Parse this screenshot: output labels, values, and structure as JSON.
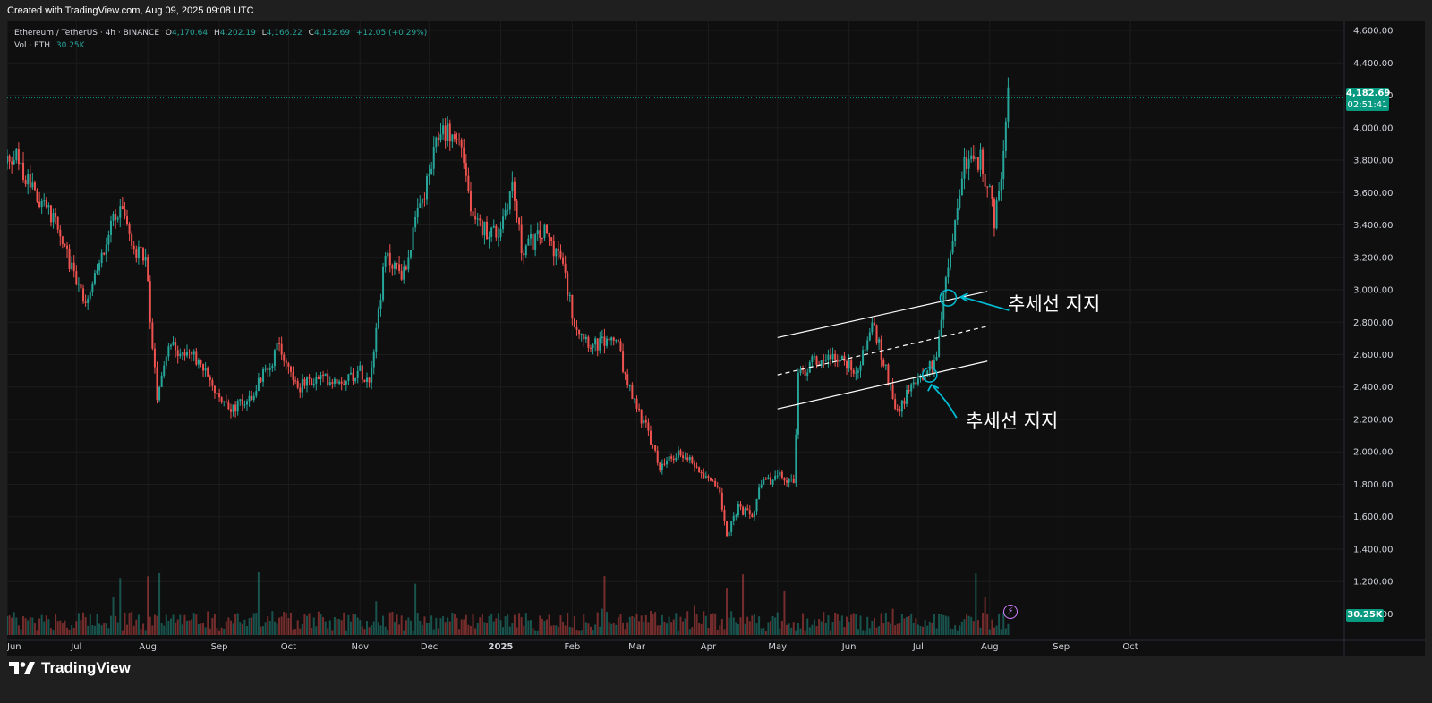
{
  "header": {
    "created_text": "Created with TradingView.com, Aug 09, 2025 09:08 UTC"
  },
  "legend": {
    "symbol": "Ethereum / TetherUS · 4h · BINANCE",
    "o_label": "O",
    "o_value": "4,170.64",
    "h_label": "H",
    "h_value": "4,202.19",
    "l_label": "L",
    "l_value": "4,166.22",
    "c_label": "C",
    "c_value": "4,182.69",
    "change": "+12.05 (+0.29%)",
    "vol_label": "Vol · ETH",
    "vol_value": "30.25K"
  },
  "badges": {
    "last_price": "4,182.69",
    "countdown": "02:51:41",
    "volume": "30.25K"
  },
  "annotations": {
    "upper_support": "추세선 지지",
    "lower_support": "추세선 지지"
  },
  "footer": {
    "brand": "TradingView"
  },
  "colors": {
    "up": "#26a69a",
    "down": "#ef5350",
    "accent": "#00bcd4",
    "badge": "#089981"
  },
  "chart_data": {
    "type": "candlestick",
    "title": "",
    "interval": "4h",
    "y_axis": {
      "position": "right",
      "ticks": [
        "4,600.00",
        "4,400.00",
        "4,200.00",
        "4,000.00",
        "3,800.00",
        "3,600.00",
        "3,400.00",
        "3,200.00",
        "3,000.00",
        "2,800.00",
        "2,600.00",
        "2,400.00",
        "2,200.00",
        "2,000.00",
        "1,800.00",
        "1,600.00",
        "1,400.00",
        "1,200.00",
        "1,000.00"
      ],
      "range": [
        870,
        4650
      ]
    },
    "x_axis": {
      "ticks": [
        "Jun",
        "Jul",
        "Aug",
        "Sep",
        "Oct",
        "Nov",
        "Dec",
        "2025",
        "Feb",
        "Mar",
        "Apr",
        "May",
        "Jun",
        "Jul",
        "Aug",
        "Sep",
        "Oct"
      ]
    },
    "grid": true,
    "last_price": 4182.69,
    "price_path": [
      [
        "2024-06-01",
        3780
      ],
      [
        "2024-06-05",
        3820
      ],
      [
        "2024-06-10",
        3650
      ],
      [
        "2024-06-17",
        3500
      ],
      [
        "2024-06-24",
        3370
      ],
      [
        "2024-06-28",
        3150
      ],
      [
        "2024-07-05",
        2890
      ],
      [
        "2024-07-10",
        3100
      ],
      [
        "2024-07-15",
        3380
      ],
      [
        "2024-07-20",
        3500
      ],
      [
        "2024-07-25",
        3250
      ],
      [
        "2024-07-31",
        3200
      ],
      [
        "2024-08-05",
        2300
      ],
      [
        "2024-08-10",
        2650
      ],
      [
        "2024-08-20",
        2600
      ],
      [
        "2024-08-27",
        2450
      ],
      [
        "2024-09-06",
        2250
      ],
      [
        "2024-09-15",
        2350
      ],
      [
        "2024-09-27",
        2650
      ],
      [
        "2024-10-05",
        2400
      ],
      [
        "2024-10-14",
        2450
      ],
      [
        "2024-10-25",
        2450
      ],
      [
        "2024-11-01",
        2500
      ],
      [
        "2024-11-05",
        2450
      ],
      [
        "2024-11-12",
        3200
      ],
      [
        "2024-11-20",
        3100
      ],
      [
        "2024-11-25",
        3400
      ],
      [
        "2024-12-01",
        3700
      ],
      [
        "2024-12-06",
        4000
      ],
      [
        "2024-12-15",
        3900
      ],
      [
        "2024-12-20",
        3400
      ],
      [
        "2024-12-31",
        3350
      ],
      [
        "2025-01-06",
        3650
      ],
      [
        "2025-01-10",
        3250
      ],
      [
        "2025-01-20",
        3350
      ],
      [
        "2025-01-27",
        3200
      ],
      [
        "2025-02-02",
        2800
      ],
      [
        "2025-02-10",
        2650
      ],
      [
        "2025-02-20",
        2700
      ],
      [
        "2025-02-25",
        2400
      ],
      [
        "2025-03-05",
        2150
      ],
      [
        "2025-03-11",
        1900
      ],
      [
        "2025-03-20",
        2000
      ],
      [
        "2025-03-28",
        1900
      ],
      [
        "2025-04-05",
        1800
      ],
      [
        "2025-04-09",
        1500
      ],
      [
        "2025-04-14",
        1650
      ],
      [
        "2025-04-20",
        1600
      ],
      [
        "2025-04-24",
        1800
      ],
      [
        "2025-05-01",
        1850
      ],
      [
        "2025-05-08",
        1820
      ],
      [
        "2025-05-10",
        2450
      ],
      [
        "2025-05-15",
        2550
      ],
      [
        "2025-05-25",
        2600
      ],
      [
        "2025-06-05",
        2500
      ],
      [
        "2025-06-11",
        2800
      ],
      [
        "2025-06-17",
        2500
      ],
      [
        "2025-06-22",
        2250
      ],
      [
        "2025-06-30",
        2450
      ],
      [
        "2025-07-05",
        2500
      ],
      [
        "2025-07-09",
        2600
      ],
      [
        "2025-07-12",
        2950
      ],
      [
        "2025-07-17",
        3400
      ],
      [
        "2025-07-21",
        3800
      ],
      [
        "2025-07-28",
        3800
      ],
      [
        "2025-08-01",
        3600
      ],
      [
        "2025-08-03",
        3400
      ],
      [
        "2025-08-06",
        3700
      ],
      [
        "2025-08-09",
        4182.69
      ]
    ],
    "drawings": [
      {
        "name": "upper-channel-line",
        "from": [
          "2025-05-01",
          2705
        ],
        "to": [
          "2025-07-31",
          2990
        ]
      },
      {
        "name": "mid-channel-line",
        "from": [
          "2025-05-01",
          2475
        ],
        "to": [
          "2025-07-31",
          2775
        ],
        "style": "dashed"
      },
      {
        "name": "lower-channel-line",
        "from": [
          "2025-05-01",
          2265
        ],
        "to": [
          "2025-07-31",
          2560
        ]
      }
    ]
  }
}
